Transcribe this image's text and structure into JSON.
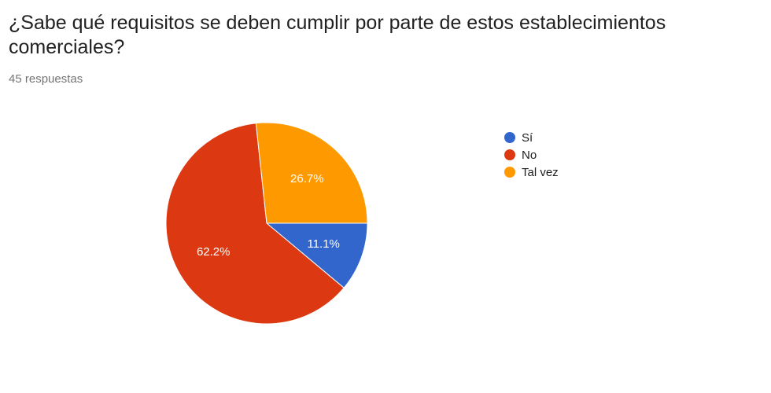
{
  "question": {
    "title": "¿Sabe qué requisitos se deben cumplir por parte de estos establecimientos comerciales?",
    "response_count": "45 respuestas"
  },
  "chart_data": {
    "type": "pie",
    "slices": [
      {
        "label": "Sí",
        "value": 11.1,
        "display": "11.1%",
        "color": "#3366cc"
      },
      {
        "label": "No",
        "value": 62.2,
        "display": "62.2%",
        "color": "#dc3912"
      },
      {
        "label": "Tal vez",
        "value": 26.7,
        "display": "26.7%",
        "color": "#ff9900"
      }
    ],
    "start_angle_deg": 90,
    "direction": "clockwise",
    "legend_position": "right"
  }
}
